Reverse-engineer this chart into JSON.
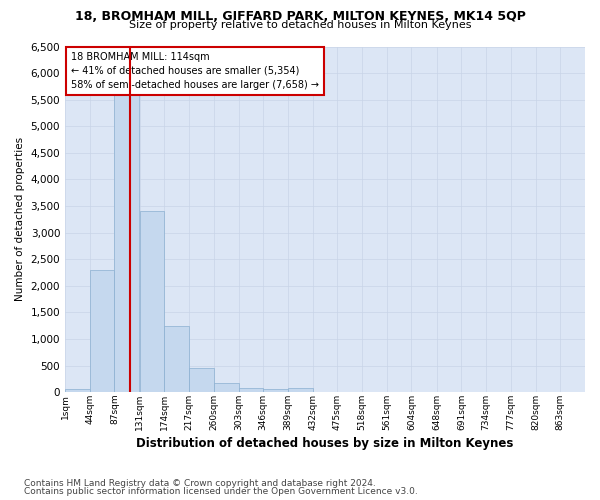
{
  "title1": "18, BROMHAM MILL, GIFFARD PARK, MILTON KEYNES, MK14 5QP",
  "title2": "Size of property relative to detached houses in Milton Keynes",
  "xlabel": "Distribution of detached houses by size in Milton Keynes",
  "ylabel": "Number of detached properties",
  "footnote1": "Contains HM Land Registry data © Crown copyright and database right 2024.",
  "footnote2": "Contains public sector information licensed under the Open Government Licence v3.0.",
  "annotation_line1": "18 BROMHAM MILL: 114sqm",
  "annotation_line2": "← 41% of detached houses are smaller (5,354)",
  "annotation_line3": "58% of semi-detached houses are larger (7,658) →",
  "bar_color": "#c5d8ee",
  "bar_edge_color": "#8aafd0",
  "grid_color": "#c8d4e8",
  "bg_color": "#dce6f5",
  "vline_color": "#cc0000",
  "vline_x": 114,
  "categories": [
    "1sqm",
    "44sqm",
    "87sqm",
    "131sqm",
    "174sqm",
    "217sqm",
    "260sqm",
    "303sqm",
    "346sqm",
    "389sqm",
    "432sqm",
    "475sqm",
    "518sqm",
    "561sqm",
    "604sqm",
    "648sqm",
    "691sqm",
    "734sqm",
    "777sqm",
    "820sqm",
    "863sqm"
  ],
  "bin_starts": [
    1,
    44,
    87,
    131,
    174,
    217,
    260,
    303,
    346,
    389,
    432,
    475,
    518,
    561,
    604,
    648,
    691,
    734,
    777,
    820,
    863
  ],
  "bin_width": 43,
  "bar_heights": [
    60,
    2300,
    6050,
    3400,
    1250,
    450,
    175,
    85,
    60,
    75,
    0,
    0,
    0,
    0,
    0,
    0,
    0,
    0,
    0,
    0,
    0
  ],
  "ylim": [
    0,
    6500
  ],
  "yticks": [
    0,
    500,
    1000,
    1500,
    2000,
    2500,
    3000,
    3500,
    4000,
    4500,
    5000,
    5500,
    6000,
    6500
  ]
}
